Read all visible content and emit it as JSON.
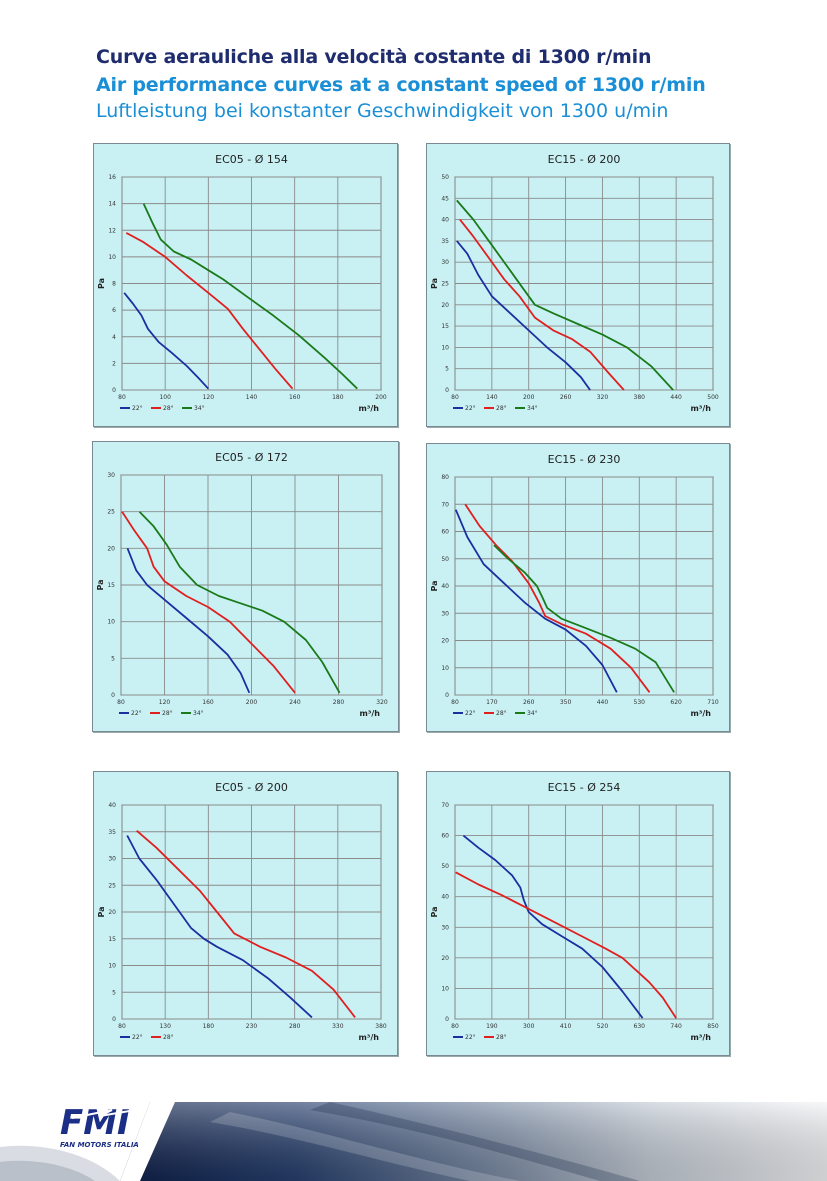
{
  "header": {
    "title_it": "Curve aerauliche alla velocità costante di 1300 r/min",
    "title_en": "Air performance curves at a constant speed of 1300 r/min",
    "title_de": "Luftleistung bei konstanter Geschwindigkeit von 1300 u/min"
  },
  "colors": {
    "s22": "#1a2fa0",
    "s28": "#e01f1f",
    "s34": "#1a7a1a",
    "panel": "#c9f1f4",
    "grid": "#8a8a8a"
  },
  "brand": {
    "logo_text": "FMI",
    "logo_sub": "FAN MOTORS ITALIA"
  },
  "chart_data": [
    {
      "type": "line",
      "title": "EC05 - Ø 154",
      "xlabel": "m³/h",
      "ylabel": "Pa",
      "xlim": [
        80,
        200
      ],
      "ylim": [
        0,
        16
      ],
      "xticks": [
        80,
        100,
        120,
        140,
        160,
        180,
        200
      ],
      "yticks": [
        0,
        2,
        4,
        6,
        8,
        10,
        12,
        14,
        16
      ],
      "legend": [
        "22°",
        "28°",
        "34°"
      ],
      "series": [
        {
          "name": "22°",
          "x": [
            81,
            85,
            89,
            92,
            97,
            103,
            110,
            116,
            120
          ],
          "y": [
            7.3,
            6.5,
            5.6,
            4.6,
            3.6,
            2.8,
            1.8,
            0.8,
            0.1
          ]
        },
        {
          "name": "28°",
          "x": [
            82,
            90,
            100,
            110,
            120,
            129,
            136,
            144,
            151,
            159
          ],
          "y": [
            11.8,
            11.1,
            10.0,
            8.6,
            7.3,
            6.1,
            4.6,
            3.0,
            1.6,
            0.1
          ]
        },
        {
          "name": "34°",
          "x": [
            90,
            94,
            98,
            104,
            112,
            120,
            127,
            138,
            150,
            162,
            174,
            182,
            189
          ],
          "y": [
            14.0,
            12.6,
            11.3,
            10.4,
            9.8,
            9.0,
            8.3,
            7.0,
            5.6,
            4.1,
            2.4,
            1.2,
            0.1
          ]
        }
      ]
    },
    {
      "type": "line",
      "title": "EC15 - Ø 200",
      "xlabel": "m³/h",
      "ylabel": "Pa",
      "xlim": [
        80,
        500
      ],
      "ylim": [
        0,
        50
      ],
      "xticks": [
        80,
        140,
        200,
        260,
        320,
        380,
        440,
        500
      ],
      "yticks": [
        0,
        5,
        10,
        15,
        20,
        25,
        30,
        35,
        40,
        45,
        50
      ],
      "legend": [
        "22°",
        "28°",
        "34°"
      ],
      "series": [
        {
          "name": "22°",
          "x": [
            83,
            100,
            118,
            140,
            170,
            200,
            230,
            260,
            285,
            300
          ],
          "y": [
            35,
            32,
            27,
            22,
            18,
            14,
            10,
            6.5,
            3,
            0
          ]
        },
        {
          "name": "28°",
          "x": [
            88,
            110,
            135,
            160,
            185,
            210,
            240,
            270,
            300,
            330,
            355
          ],
          "y": [
            40,
            36,
            31,
            26,
            22,
            17,
            14,
            12,
            9,
            4,
            0
          ]
        },
        {
          "name": "34°",
          "x": [
            83,
            110,
            140,
            170,
            190,
            210,
            240,
            280,
            320,
            360,
            400,
            435
          ],
          "y": [
            44.5,
            40,
            34,
            28,
            24,
            20,
            18,
            15.5,
            13,
            10,
            5.5,
            0
          ]
        }
      ]
    },
    {
      "type": "line",
      "title": "EC05 - Ø 172",
      "xlabel": "m³/h",
      "ylabel": "Pa",
      "xlim": [
        80,
        320
      ],
      "ylim": [
        0,
        30
      ],
      "xticks": [
        80,
        120,
        160,
        200,
        240,
        280,
        320
      ],
      "yticks": [
        0,
        5,
        10,
        15,
        20,
        25,
        30
      ],
      "legend": [
        "22°",
        "28°",
        "34°"
      ],
      "series": [
        {
          "name": "22°",
          "x": [
            86,
            94,
            104,
            120,
            140,
            160,
            178,
            190,
            198
          ],
          "y": [
            20,
            17,
            15,
            13,
            10.5,
            8,
            5.5,
            3,
            0.3
          ]
        },
        {
          "name": "28°",
          "x": [
            81,
            92,
            104,
            110,
            120,
            140,
            160,
            180,
            200,
            220,
            240
          ],
          "y": [
            25,
            22.5,
            20,
            17.5,
            15.5,
            13.5,
            12,
            10,
            7,
            4,
            0.3
          ]
        },
        {
          "name": "34°",
          "x": [
            97,
            110,
            122,
            134,
            150,
            170,
            190,
            210,
            230,
            250,
            265,
            281
          ],
          "y": [
            25,
            23,
            20.5,
            17.5,
            15,
            13.5,
            12.5,
            11.5,
            10,
            7.5,
            4.5,
            0.3
          ]
        }
      ]
    },
    {
      "type": "line",
      "title": "EC15 - Ø 230",
      "xlabel": "m³/h",
      "ylabel": "Pa",
      "xlim": [
        80,
        710
      ],
      "ylim": [
        0,
        80
      ],
      "xticks": [
        80,
        170,
        260,
        350,
        440,
        530,
        620,
        710
      ],
      "yticks": [
        0,
        10,
        20,
        30,
        40,
        50,
        60,
        70,
        80
      ],
      "legend": [
        "22°",
        "28°",
        "34°"
      ],
      "series": [
        {
          "name": "22°",
          "x": [
            82,
            110,
            150,
            200,
            250,
            300,
            350,
            400,
            440,
            475
          ],
          "y": [
            68,
            58,
            48,
            41,
            34,
            28,
            24,
            18,
            11,
            1
          ]
        },
        {
          "name": "28°",
          "x": [
            105,
            140,
            180,
            220,
            260,
            285,
            300,
            340,
            400,
            460,
            510,
            555
          ],
          "y": [
            70,
            62,
            55,
            49,
            41,
            34,
            29,
            26,
            22.5,
            17,
            10,
            1
          ]
        },
        {
          "name": "34°",
          "x": [
            175,
            210,
            250,
            280,
            293,
            305,
            340,
            400,
            460,
            520,
            570,
            615
          ],
          "y": [
            55,
            50,
            45,
            40,
            36,
            32,
            28,
            24.5,
            21,
            17,
            12,
            1
          ]
        }
      ]
    },
    {
      "type": "line",
      "title": "EC05 - Ø 200",
      "xlabel": "m³/h",
      "ylabel": "Pa",
      "xlim": [
        80,
        380
      ],
      "ylim": [
        0,
        40
      ],
      "xticks": [
        80,
        130,
        180,
        230,
        280,
        330,
        380
      ],
      "yticks": [
        0,
        5,
        10,
        15,
        20,
        25,
        30,
        35,
        40
      ],
      "legend": [
        "22°",
        "28°"
      ],
      "series": [
        {
          "name": "22°",
          "x": [
            86,
            100,
            120,
            140,
            160,
            175,
            190,
            220,
            250,
            275,
            300
          ],
          "y": [
            34.3,
            30,
            26,
            21.5,
            17,
            15,
            13.5,
            11,
            7.5,
            4,
            0.3
          ]
        },
        {
          "name": "28°",
          "x": [
            97,
            120,
            145,
            170,
            190,
            210,
            240,
            270,
            300,
            325,
            350
          ],
          "y": [
            35.2,
            32,
            28,
            24,
            20,
            16,
            13.5,
            11.5,
            9,
            5.5,
            0.3
          ]
        }
      ]
    },
    {
      "type": "line",
      "title": "EC15 - Ø 254",
      "xlabel": "m³/h",
      "ylabel": "Pa",
      "xlim": [
        80,
        850
      ],
      "ylim": [
        0,
        70
      ],
      "xticks": [
        80,
        190,
        300,
        410,
        520,
        630,
        740,
        850
      ],
      "yticks": [
        0,
        10,
        20,
        30,
        40,
        50,
        60,
        70
      ],
      "legend": [
        "22°",
        "28°"
      ],
      "series": [
        {
          "name": "22°",
          "x": [
            105,
            150,
            200,
            250,
            275,
            285,
            300,
            340,
            400,
            460,
            520,
            580,
            640
          ],
          "y": [
            60,
            56,
            52,
            47,
            43,
            39,
            35,
            31,
            27,
            23,
            17,
            9,
            0.3
          ]
        },
        {
          "name": "28°",
          "x": [
            82,
            150,
            220,
            300,
            380,
            460,
            530,
            580,
            620,
            660,
            700,
            740
          ],
          "y": [
            48,
            44,
            40.5,
            36,
            31.5,
            27,
            23,
            20,
            16,
            12,
            7,
            0.3
          ]
        }
      ]
    }
  ]
}
